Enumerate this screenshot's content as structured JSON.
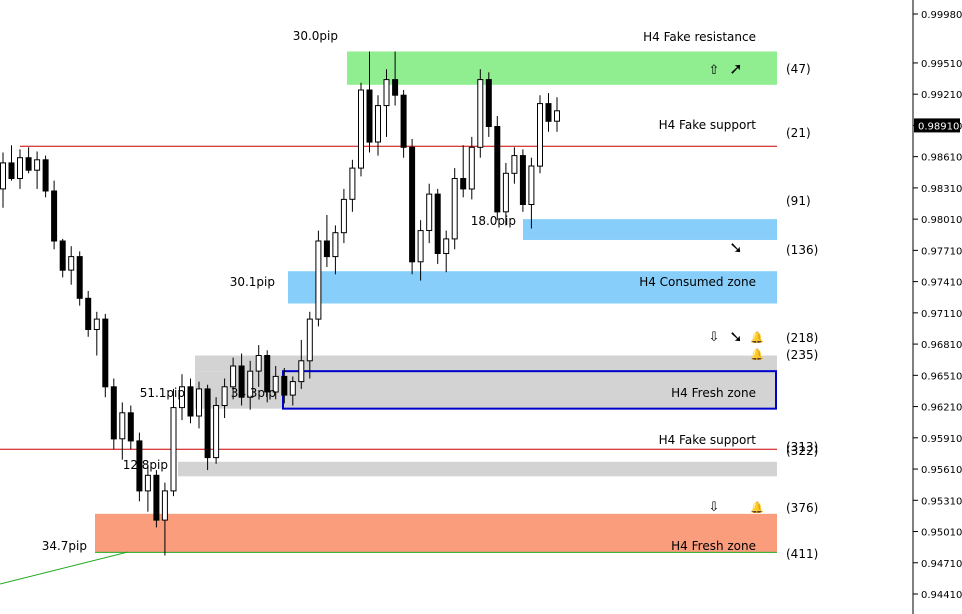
{
  "chart_data": {
    "type": "candlestick",
    "price_axis": {
      "ylim": [
        0.9425,
        0.9998
      ],
      "ticks": [
        "0.99980",
        "0.99510",
        "0.99210",
        "0.98910",
        "0.98610",
        "0.98310",
        "0.98010",
        "0.97710",
        "0.97410",
        "0.97110",
        "0.96810",
        "0.96510",
        "0.96210",
        "0.95910",
        "0.95610",
        "0.95310",
        "0.95010",
        "0.94710",
        "0.94410"
      ],
      "current_price_label": "0.98910"
    },
    "candles": [
      [
        0.983,
        0.9865,
        0.9812,
        0.9855
      ],
      [
        0.9855,
        0.9872,
        0.9838,
        0.984
      ],
      [
        0.984,
        0.9868,
        0.983,
        0.986
      ],
      [
        0.986,
        0.987,
        0.9845,
        0.9848
      ],
      [
        0.9848,
        0.9866,
        0.983,
        0.9858
      ],
      [
        0.9858,
        0.9862,
        0.9822,
        0.9828
      ],
      [
        0.9828,
        0.9838,
        0.9772,
        0.978
      ],
      [
        0.978,
        0.9782,
        0.9745,
        0.9752
      ],
      [
        0.9752,
        0.9775,
        0.9738,
        0.9765
      ],
      [
        0.9765,
        0.977,
        0.9718,
        0.9725
      ],
      [
        0.9725,
        0.9732,
        0.9688,
        0.9695
      ],
      [
        0.9695,
        0.9712,
        0.967,
        0.9705
      ],
      [
        0.9705,
        0.971,
        0.963,
        0.964
      ],
      [
        0.964,
        0.9648,
        0.958,
        0.959
      ],
      [
        0.959,
        0.9625,
        0.957,
        0.9615
      ],
      [
        0.9615,
        0.9622,
        0.958,
        0.9588
      ],
      [
        0.9588,
        0.9596,
        0.953,
        0.954
      ],
      [
        0.954,
        0.9565,
        0.952,
        0.9555
      ],
      [
        0.9555,
        0.956,
        0.9505,
        0.9512
      ],
      [
        0.9512,
        0.9548,
        0.9478,
        0.954
      ],
      [
        0.954,
        0.9638,
        0.9535,
        0.962
      ],
      [
        0.962,
        0.9652,
        0.9608,
        0.964
      ],
      [
        0.964,
        0.9648,
        0.9605,
        0.9612
      ],
      [
        0.9612,
        0.9645,
        0.96,
        0.9638
      ],
      [
        0.9638,
        0.9642,
        0.956,
        0.9572
      ],
      [
        0.9572,
        0.963,
        0.9566,
        0.9622
      ],
      [
        0.9622,
        0.9648,
        0.961,
        0.964
      ],
      [
        0.964,
        0.9668,
        0.9628,
        0.966
      ],
      [
        0.966,
        0.9672,
        0.9622,
        0.963
      ],
      [
        0.963,
        0.9665,
        0.9618,
        0.9655
      ],
      [
        0.9655,
        0.968,
        0.964,
        0.967
      ],
      [
        0.967,
        0.9675,
        0.9625,
        0.9635
      ],
      [
        0.9635,
        0.966,
        0.9628,
        0.965
      ],
      [
        0.965,
        0.9658,
        0.9624,
        0.9632
      ],
      [
        0.9632,
        0.965,
        0.9622,
        0.9645
      ],
      [
        0.9645,
        0.9685,
        0.9638,
        0.9665
      ],
      [
        0.9665,
        0.9712,
        0.9648,
        0.9705
      ],
      [
        0.9705,
        0.979,
        0.9698,
        0.978
      ],
      [
        0.978,
        0.9805,
        0.9755,
        0.9765
      ],
      [
        0.9765,
        0.9795,
        0.9748,
        0.9788
      ],
      [
        0.9788,
        0.983,
        0.9778,
        0.982
      ],
      [
        0.982,
        0.9858,
        0.9808,
        0.985
      ],
      [
        0.985,
        0.9932,
        0.9842,
        0.9925
      ],
      [
        0.9925,
        0.9962,
        0.9865,
        0.9875
      ],
      [
        0.9875,
        0.992,
        0.9862,
        0.991
      ],
      [
        0.991,
        0.9945,
        0.988,
        0.9935
      ],
      [
        0.9935,
        0.9962,
        0.991,
        0.992
      ],
      [
        0.992,
        0.9925,
        0.986,
        0.987
      ],
      [
        0.987,
        0.9878,
        0.9748,
        0.976
      ],
      [
        0.976,
        0.98,
        0.9742,
        0.979
      ],
      [
        0.979,
        0.9835,
        0.9778,
        0.9825
      ],
      [
        0.9825,
        0.983,
        0.9758,
        0.9768
      ],
      [
        0.9768,
        0.979,
        0.975,
        0.9782
      ],
      [
        0.9782,
        0.985,
        0.9772,
        0.984
      ],
      [
        0.984,
        0.9872,
        0.9822,
        0.983
      ],
      [
        0.983,
        0.988,
        0.982,
        0.987
      ],
      [
        0.987,
        0.9945,
        0.986,
        0.9935
      ],
      [
        0.9935,
        0.9942,
        0.988,
        0.989
      ],
      [
        0.989,
        0.99,
        0.98,
        0.9808
      ],
      [
        0.9808,
        0.9855,
        0.9795,
        0.9845
      ],
      [
        0.9845,
        0.987,
        0.9835,
        0.9862
      ],
      [
        0.9862,
        0.9868,
        0.9808,
        0.9815
      ],
      [
        0.9815,
        0.986,
        0.9792,
        0.9852
      ],
      [
        0.9852,
        0.992,
        0.9845,
        0.9912
      ],
      [
        0.9912,
        0.9922,
        0.9885,
        0.9895
      ],
      [
        0.9895,
        0.9918,
        0.9885,
        0.9905
      ]
    ],
    "zones": [
      {
        "label": "H4 Fake resistance",
        "pips": "30.0pip",
        "count": "(47)",
        "color": "#90ee90"
      },
      {
        "label": "",
        "pips": "18.0pip",
        "count": "(91)",
        "color": "#87cefa"
      },
      {
        "label": "H4 Consumed zone",
        "pips": "30.1pip",
        "count": "(136)",
        "color": "#87cefa"
      },
      {
        "label": "",
        "pips": "",
        "count": "(218)",
        "color": "#d3d3d3"
      },
      {
        "label": "H4 Fresh zone",
        "pips": "34.3pip",
        "count": "(235)",
        "color": "#d3d3d3",
        "border": "#0000cd"
      },
      {
        "label": "",
        "pips": "51.1pip",
        "count": "",
        "color": "#d3d3d3"
      },
      {
        "label": "",
        "pips": "12.8pip",
        "count": "(322)",
        "color": "#d3d3d3"
      },
      {
        "label": "H4 Fresh zone",
        "pips": "34.7pip",
        "count": "(411)",
        "color": "#fa9d7c"
      }
    ],
    "lines": [
      {
        "label": "H4 Fake support",
        "count": "(21)",
        "color": "#cc0000"
      },
      {
        "label": "H4 Fake support",
        "count": "(313)",
        "color": "#cc0000"
      }
    ],
    "extra_count": "(376)"
  }
}
